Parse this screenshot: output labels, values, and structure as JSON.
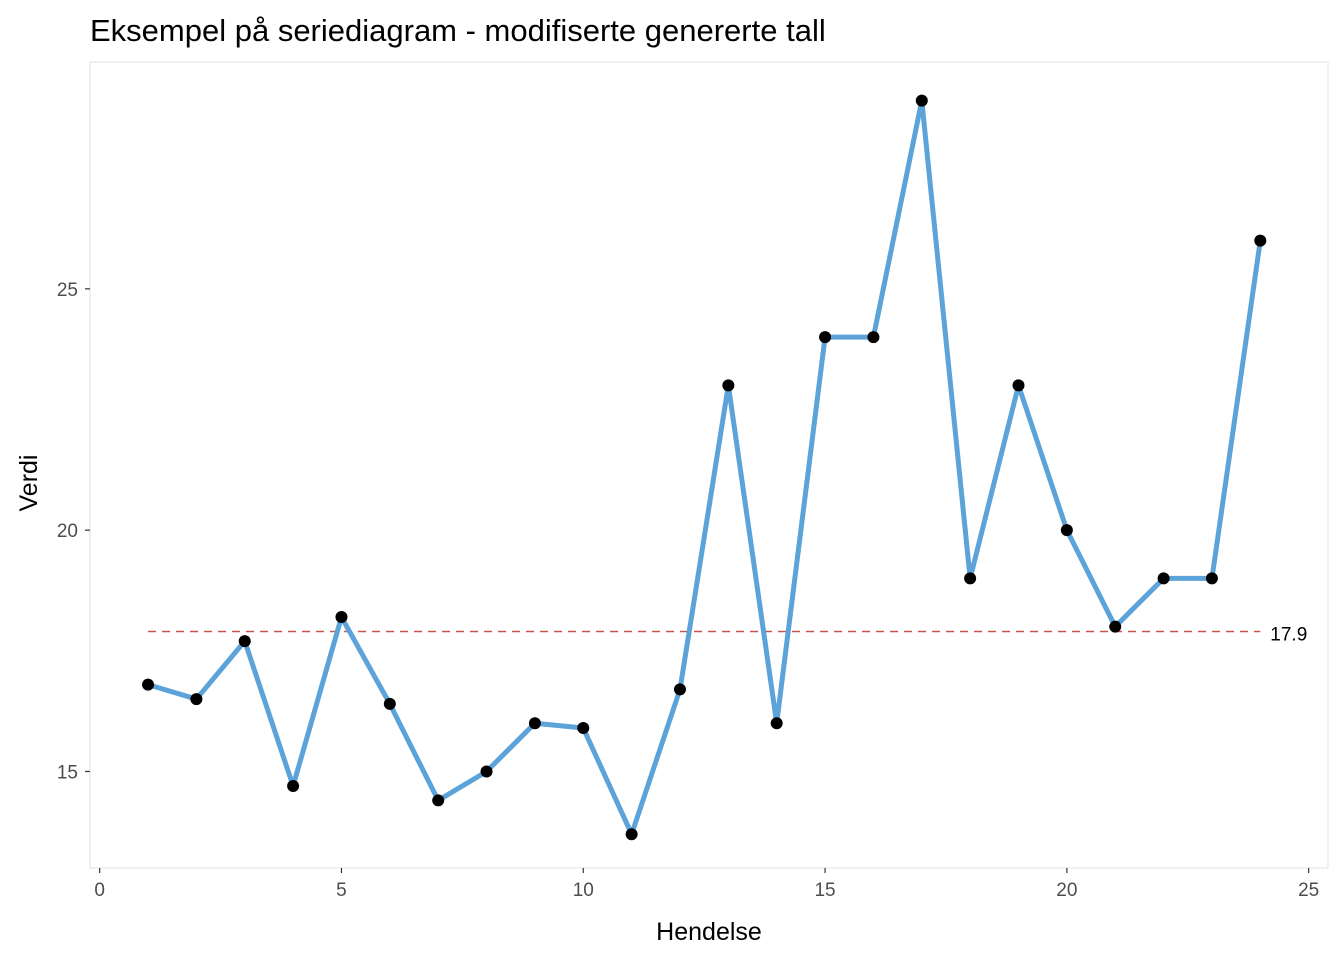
{
  "chart_data": {
    "type": "line",
    "title": "Eksempel på seriediagram - modifiserte genererte tall",
    "xlabel": "Hendelse",
    "ylabel": "Verdi",
    "xlim": [
      -0.2,
      25.4
    ],
    "ylim": [
      13.0,
      29.7
    ],
    "xticks": [
      0,
      5,
      10,
      15,
      20,
      25
    ],
    "yticks": [
      15,
      20,
      25
    ],
    "grid": false,
    "panel_border": true,
    "series": [
      {
        "color": "#5ba3d9",
        "marker_color": "#000000",
        "x": [
          1,
          2,
          3,
          4,
          5,
          6,
          7,
          8,
          9,
          10,
          11,
          12,
          13,
          14,
          15,
          16,
          17,
          18,
          19,
          20,
          21,
          22,
          23,
          24
        ],
        "y": [
          16.8,
          16.5,
          17.7,
          14.7,
          18.2,
          16.4,
          14.4,
          15.0,
          16.0,
          15.9,
          13.7,
          16.7,
          23.0,
          16.0,
          24.0,
          24.0,
          28.9,
          19.0,
          23.0,
          20.0,
          18.0,
          19.0,
          19.0,
          26.0
        ]
      }
    ],
    "reference_line": {
      "value": 17.9,
      "label": "17.9",
      "style": "dashed",
      "color": "#c9524a",
      "x_from": 1,
      "x_to": 24
    }
  }
}
